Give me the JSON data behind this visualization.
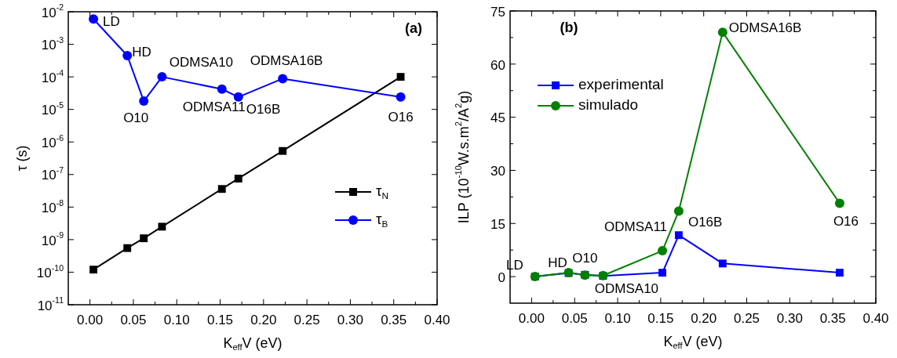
{
  "chart_data": [
    {
      "type": "line",
      "title": "(a)",
      "xlabel": "K$_{eff}$V (eV)",
      "ylabel": "τ (s)",
      "log": "y",
      "legend": "bottom right",
      "grid": false,
      "x": [
        0.004,
        0.043,
        0.062,
        0.083,
        0.152,
        0.171,
        0.222,
        0.358
      ],
      "series": [
        {
          "name": "τ$_{N}$",
          "color": "#000000",
          "marker": "square",
          "values": [
            1.2e-10,
            5.5e-10,
            1.1e-09,
            2.5e-09,
            3.6e-08,
            7.5e-08,
            5.3e-07,
            0.0001
          ]
        },
        {
          "name": "τ$_{B}$",
          "color": "#0000ff",
          "marker": "circle",
          "values": [
            0.006,
            0.00045,
            1.8e-05,
            0.0001,
            4.2e-05,
            2.4e-05,
            8.8e-05,
            2.4e-05
          ]
        }
      ],
      "xlim": [
        -0.025,
        0.4
      ],
      "xticks": [
        {
          "value": 0,
          "label": "0.00"
        },
        {
          "value": 0.025,
          "label": null
        },
        0.05,
        {
          "value": 0.075,
          "label": null
        },
        {
          "value": 0.1,
          "label": "0.10"
        },
        {
          "value": 0.125,
          "label": null
        },
        0.15,
        {
          "value": 0.175,
          "label": null
        },
        {
          "value": 0.2,
          "label": "0.20"
        },
        {
          "value": 0.225,
          "label": null
        },
        0.25,
        {
          "value": 0.275,
          "label": null
        },
        {
          "value": 0.3,
          "label": "0.30"
        },
        {
          "value": 0.325,
          "label": null
        },
        0.35,
        {
          "value": 0.375,
          "label": null
        },
        {
          "value": 0.4,
          "label": "0.40"
        }
      ],
      "ylim": [
        1e-11,
        0.01
      ],
      "yticks": [
        {
          "value": 1e-11,
          "label": "10$^{-11}$"
        },
        {
          "value": 1e-10,
          "label": "10$^{-10}$"
        },
        {
          "value": 1e-09,
          "label": "10$^{-9}$"
        },
        {
          "value": 1e-08,
          "label": "10$^{-8}$"
        },
        {
          "value": 1e-07,
          "label": "10$^{-7}$"
        },
        {
          "value": 1e-06,
          "label": "10$^{-6}$"
        },
        {
          "value": 1e-05,
          "label": "10$^{-5}$"
        },
        {
          "value": 0.0001,
          "label": "10$^{-4}$"
        },
        {
          "value": 0.001,
          "label": "10$^{-3}$"
        },
        {
          "value": 0.01,
          "label": "10$^{-2}$"
        }
      ],
      "annotations": [
        {
          "text": "LD",
          "x": 0.004,
          "y": 0.006
        },
        {
          "text": "HD",
          "x": 0.043,
          "y": 0.00045
        },
        {
          "text": "O10",
          "x": 0.062,
          "y": 1.8e-05
        },
        {
          "text": "ODMSA10",
          "x": 0.083,
          "y": 0.0001
        },
        {
          "text": "ODMSA11",
          "x": 0.152,
          "y": 4.2e-05
        },
        {
          "text": "O16B",
          "x": 0.171,
          "y": 2.4e-05
        },
        {
          "text": "ODMSA16B",
          "x": 0.222,
          "y": 8.8e-05
        },
        {
          "text": "O16",
          "x": 0.358,
          "y": 2.4e-05
        }
      ]
    },
    {
      "type": "line",
      "title": "(b)",
      "xlabel": "K$_{eff}$V (eV)",
      "ylabel": "ILP (10$^{-10}$W.s.m$^{2}$/A$^{2}$g)",
      "legend": "top left",
      "grid": false,
      "x": [
        0.004,
        0.043,
        0.062,
        0.083,
        0.152,
        0.171,
        0.222,
        0.358
      ],
      "series": [
        {
          "name": "experimental",
          "color": "#0000ff",
          "marker": "square",
          "values": [
            0,
            1.0,
            0.5,
            0.2,
            1.1,
            11.7,
            3.7,
            1.1
          ]
        },
        {
          "name": "simulado",
          "color": "#008000",
          "marker": "circle",
          "values": [
            0,
            1.1,
            0.4,
            0.3,
            7.3,
            18.5,
            69,
            20.7
          ]
        }
      ],
      "xlim": [
        -0.025,
        0.4
      ],
      "xticks": [
        {
          "value": 0,
          "label": "0.00"
        },
        {
          "value": 0.025,
          "label": null
        },
        0.05,
        {
          "value": 0.075,
          "label": null
        },
        {
          "value": 0.1,
          "label": "0.10"
        },
        {
          "value": 0.125,
          "label": null
        },
        0.15,
        {
          "value": 0.175,
          "label": null
        },
        {
          "value": 0.2,
          "label": "0.20"
        },
        {
          "value": 0.225,
          "label": null
        },
        0.25,
        {
          "value": 0.275,
          "label": null
        },
        {
          "value": 0.3,
          "label": "0.30"
        },
        {
          "value": 0.325,
          "label": null
        },
        0.35,
        {
          "value": 0.375,
          "label": null
        },
        {
          "value": 0.4,
          "label": "0.40"
        }
      ],
      "ylim": [
        -7.5,
        75
      ],
      "yticks": [
        0,
        {
          "value": 7.5,
          "label": null
        },
        15,
        {
          "value": 22.5,
          "label": null
        },
        30,
        {
          "value": 37.5,
          "label": null
        },
        45,
        {
          "value": 52.5,
          "label": null
        },
        60,
        {
          "value": 67.5,
          "label": null
        },
        75
      ],
      "annotations": [
        {
          "text": "LD",
          "x": 0.004,
          "y": 0
        },
        {
          "text": "HD",
          "x": 0.043,
          "y": 1.1
        },
        {
          "text": "O10",
          "x": 0.062,
          "y": 0.5
        },
        {
          "text": "ODMSA10",
          "x": 0.083,
          "y": 0.2
        },
        {
          "text": "ODMSA11",
          "x": 0.152,
          "y": 7.3
        },
        {
          "text": "O16B",
          "x": 0.171,
          "y": 11.7
        },
        {
          "text": "ODMSA16B",
          "x": 0.222,
          "y": 69
        },
        {
          "text": "O16",
          "x": 0.358,
          "y": 20.7
        }
      ]
    }
  ]
}
